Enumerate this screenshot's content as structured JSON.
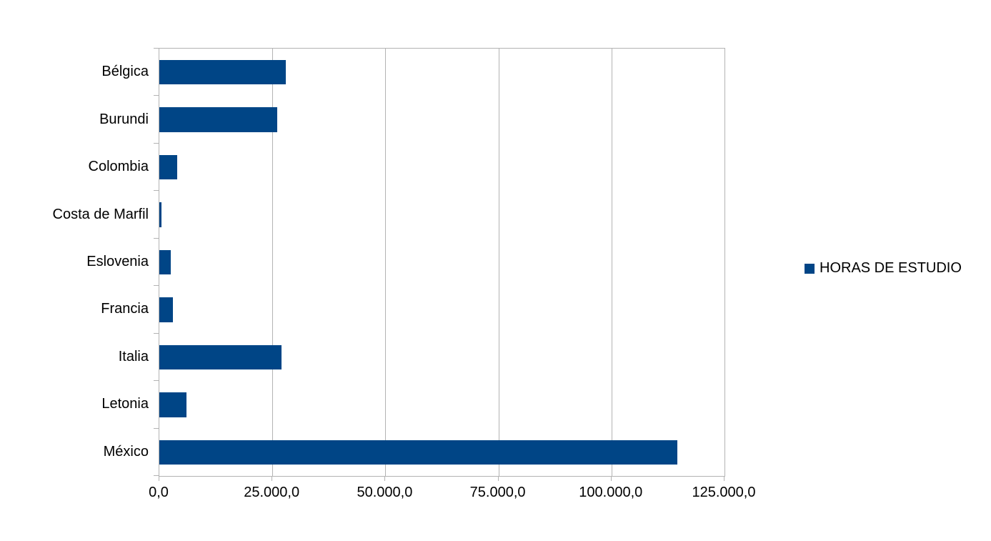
{
  "colors": {
    "bar": "#004586",
    "grid": "#b3b3b3",
    "text": "#000000",
    "background": "#ffffff"
  },
  "legend": {
    "label": "HORAS DE ESTUDIO"
  },
  "chart_data": {
    "type": "bar",
    "orientation": "horizontal",
    "title": "",
    "xlabel": "",
    "ylabel": "",
    "categories": [
      "Bélgica",
      "Burundi",
      "Colombia",
      "Costa de Marfil",
      "Eslovenia",
      "Francia",
      "Italia",
      "Letonia",
      "México"
    ],
    "series": [
      {
        "name": "HORAS DE ESTUDIO",
        "values": [
          28000,
          26000,
          4000,
          500,
          2500,
          3000,
          27000,
          6000,
          114500
        ]
      }
    ],
    "x_ticks": [
      {
        "value": 0,
        "label": "0,0"
      },
      {
        "value": 25000,
        "label": "25.000,0"
      },
      {
        "value": 50000,
        "label": "50.000,0"
      },
      {
        "value": 75000,
        "label": "75.000,0"
      },
      {
        "value": 100000,
        "label": "100.000,0"
      },
      {
        "value": 125000,
        "label": "125.000,0"
      }
    ],
    "xlim": [
      0,
      125000
    ],
    "grid": "vertical",
    "legend_position": "right"
  }
}
